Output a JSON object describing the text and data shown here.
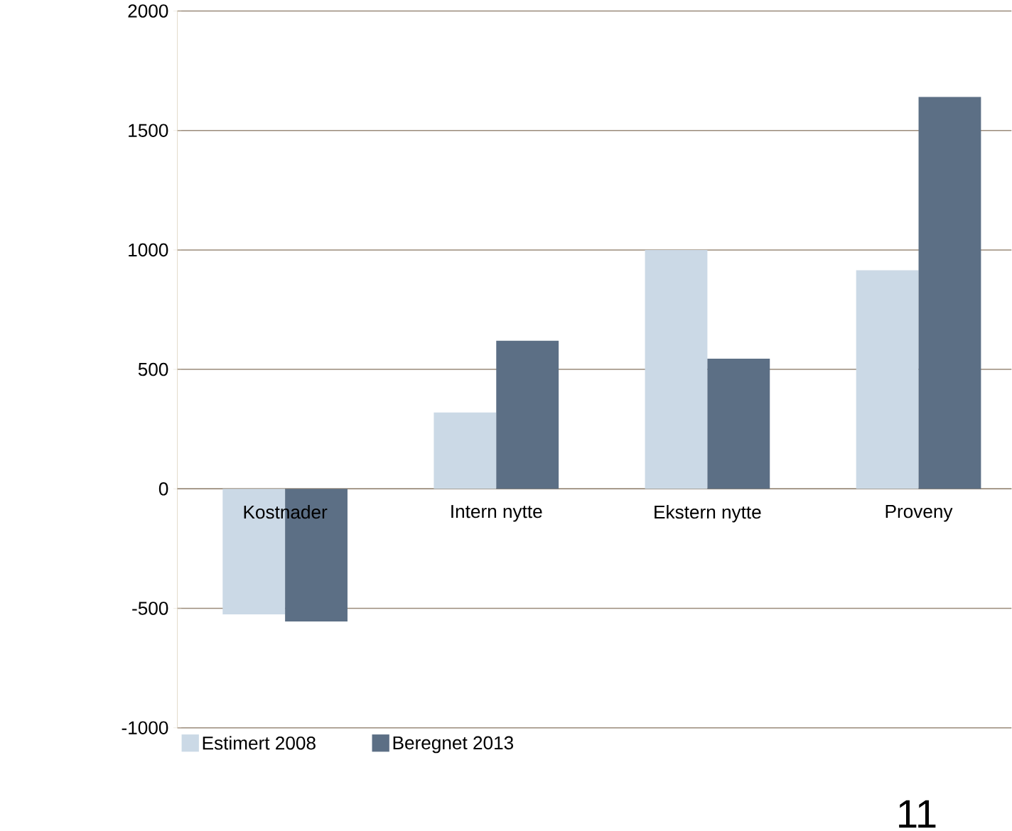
{
  "chart_data": {
    "type": "bar",
    "categories": [
      "Kostnader",
      "Intern nytte",
      "Ekstern nytte",
      "Proveny"
    ],
    "series": [
      {
        "name": "Estimert 2008",
        "color": "#cbd9e6",
        "values": [
          -525,
          320,
          1000,
          915
        ]
      },
      {
        "name": "Beregnet 2013",
        "color": "#5c6f85",
        "values": [
          -555,
          620,
          545,
          1640
        ]
      }
    ],
    "ylim": [
      -1000,
      2000
    ],
    "yticks": [
      -1000,
      -500,
      0,
      500,
      1000,
      1500,
      2000
    ],
    "grid": "y",
    "legend": "bottom left",
    "annotations": [
      "11"
    ]
  }
}
